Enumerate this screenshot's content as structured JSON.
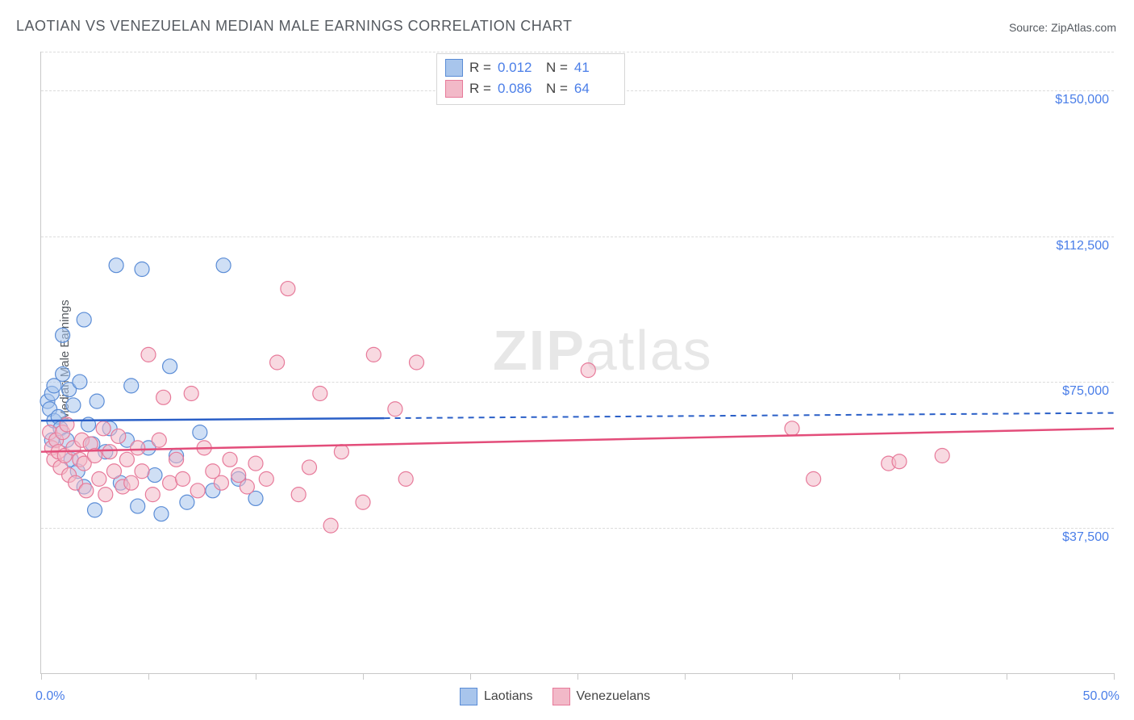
{
  "title": "LAOTIAN VS VENEZUELAN MEDIAN MALE EARNINGS CORRELATION CHART",
  "source_label": "Source: ",
  "source_name": "ZipAtlas.com",
  "ylabel": "Median Male Earnings",
  "watermark": {
    "bold": "ZIP",
    "rest": "atlas"
  },
  "chart": {
    "type": "scatter",
    "xlim": [
      0,
      50
    ],
    "ylim": [
      0,
      160000
    ],
    "x_ticks": [
      0,
      5,
      10,
      15,
      20,
      25,
      30,
      35,
      40,
      45,
      50
    ],
    "x_labels_shown": {
      "0": "0.0%",
      "50": "50.0%"
    },
    "y_gridlines": [
      37500,
      75000,
      112500,
      150000,
      160000
    ],
    "y_labels": {
      "37500": "$37,500",
      "75000": "$75,000",
      "112500": "$112,500",
      "150000": "$150,000"
    },
    "background_color": "#ffffff",
    "grid_color": "#dcdcdc",
    "axis_color": "#c8c8c8",
    "label_color": "#4a7ee8",
    "marker_radius": 9,
    "marker_opacity": 0.55,
    "series": [
      {
        "name": "Laotians",
        "fill": "#a8c5ec",
        "stroke": "#5a8cd6",
        "line_color": "#2a5fc7",
        "R": "0.012",
        "N": "41",
        "trend": {
          "y_at_x0": 65000,
          "y_at_xmax": 67000,
          "solid_until_x": 16
        },
        "points": [
          [
            0.3,
            70000
          ],
          [
            0.4,
            68000
          ],
          [
            0.5,
            72000
          ],
          [
            0.5,
            60000
          ],
          [
            0.6,
            65000
          ],
          [
            0.6,
            74000
          ],
          [
            0.8,
            66000
          ],
          [
            0.9,
            63000
          ],
          [
            1.0,
            77000
          ],
          [
            1.0,
            87000
          ],
          [
            1.2,
            60000
          ],
          [
            1.3,
            73000
          ],
          [
            1.4,
            55000
          ],
          [
            1.5,
            69000
          ],
          [
            1.7,
            52000
          ],
          [
            1.8,
            75000
          ],
          [
            2.0,
            48000
          ],
          [
            2.0,
            91000
          ],
          [
            2.2,
            64000
          ],
          [
            2.4,
            59000
          ],
          [
            2.5,
            42000
          ],
          [
            2.6,
            70000
          ],
          [
            3.0,
            57000
          ],
          [
            3.2,
            63000
          ],
          [
            3.5,
            105000
          ],
          [
            3.7,
            49000
          ],
          [
            4.0,
            60000
          ],
          [
            4.2,
            74000
          ],
          [
            4.5,
            43000
          ],
          [
            4.7,
            104000
          ],
          [
            5.0,
            58000
          ],
          [
            5.3,
            51000
          ],
          [
            5.6,
            41000
          ],
          [
            6.0,
            79000
          ],
          [
            6.3,
            56000
          ],
          [
            6.8,
            44000
          ],
          [
            7.4,
            62000
          ],
          [
            8.0,
            47000
          ],
          [
            8.5,
            105000
          ],
          [
            9.2,
            50000
          ],
          [
            10.0,
            45000
          ]
        ]
      },
      {
        "name": "Venezuelans",
        "fill": "#f2b9c8",
        "stroke": "#e77a9a",
        "line_color": "#e34d7a",
        "R": "0.086",
        "N": "64",
        "trend": {
          "y_at_x0": 57000,
          "y_at_xmax": 63000,
          "solid_until_x": 50
        },
        "points": [
          [
            0.4,
            62000
          ],
          [
            0.5,
            58000
          ],
          [
            0.6,
            55000
          ],
          [
            0.7,
            60000
          ],
          [
            0.8,
            57000
          ],
          [
            0.9,
            53000
          ],
          [
            1.0,
            62000
          ],
          [
            1.1,
            56000
          ],
          [
            1.2,
            64000
          ],
          [
            1.3,
            51000
          ],
          [
            1.5,
            58000
          ],
          [
            1.6,
            49000
          ],
          [
            1.8,
            55000
          ],
          [
            1.9,
            60000
          ],
          [
            2.0,
            54000
          ],
          [
            2.1,
            47000
          ],
          [
            2.3,
            59000
          ],
          [
            2.5,
            56000
          ],
          [
            2.7,
            50000
          ],
          [
            2.9,
            63000
          ],
          [
            3.0,
            46000
          ],
          [
            3.2,
            57000
          ],
          [
            3.4,
            52000
          ],
          [
            3.6,
            61000
          ],
          [
            3.8,
            48000
          ],
          [
            4.0,
            55000
          ],
          [
            4.2,
            49000
          ],
          [
            4.5,
            58000
          ],
          [
            4.7,
            52000
          ],
          [
            5.0,
            82000
          ],
          [
            5.2,
            46000
          ],
          [
            5.5,
            60000
          ],
          [
            5.7,
            71000
          ],
          [
            6.0,
            49000
          ],
          [
            6.3,
            55000
          ],
          [
            6.6,
            50000
          ],
          [
            7.0,
            72000
          ],
          [
            7.3,
            47000
          ],
          [
            7.6,
            58000
          ],
          [
            8.0,
            52000
          ],
          [
            8.4,
            49000
          ],
          [
            8.8,
            55000
          ],
          [
            9.2,
            51000
          ],
          [
            9.6,
            48000
          ],
          [
            10.0,
            54000
          ],
          [
            10.5,
            50000
          ],
          [
            11.0,
            80000
          ],
          [
            11.5,
            99000
          ],
          [
            12.0,
            46000
          ],
          [
            12.5,
            53000
          ],
          [
            13.0,
            72000
          ],
          [
            13.5,
            38000
          ],
          [
            14.0,
            57000
          ],
          [
            15.0,
            44000
          ],
          [
            15.5,
            82000
          ],
          [
            16.5,
            68000
          ],
          [
            17.0,
            50000
          ],
          [
            17.5,
            80000
          ],
          [
            25.5,
            78000
          ],
          [
            35.0,
            63000
          ],
          [
            36.0,
            50000
          ],
          [
            39.5,
            54000
          ],
          [
            40.0,
            54500
          ],
          [
            42.0,
            56000
          ]
        ]
      }
    ]
  },
  "stat_legend_labels": {
    "R": "R  =",
    "N": "N  ="
  },
  "series_legend_title": ""
}
